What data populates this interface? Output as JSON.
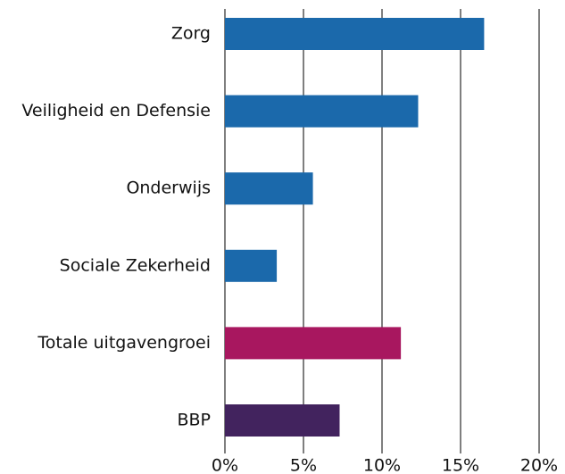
{
  "chart_data": {
    "type": "bar",
    "orientation": "horizontal",
    "categories": [
      "Zorg",
      "Veiligheid en Defensie",
      "Onderwijs",
      "Sociale Zekerheid",
      "Totale uitgavengroei",
      "BBP"
    ],
    "values": [
      16.5,
      12.3,
      5.6,
      3.3,
      11.2,
      7.3
    ],
    "colors": [
      "#1b69ab",
      "#1b69ab",
      "#1b69ab",
      "#1b69ab",
      "#a8175f",
      "#42235e"
    ],
    "xlim": [
      0,
      20
    ],
    "xticks": [
      {
        "value": 0,
        "label": "0%"
      },
      {
        "value": 5,
        "label": "5%"
      },
      {
        "value": 10,
        "label": "10%"
      },
      {
        "value": 15,
        "label": "15%"
      },
      {
        "value": 20,
        "label": "20%"
      }
    ],
    "grid": true
  }
}
